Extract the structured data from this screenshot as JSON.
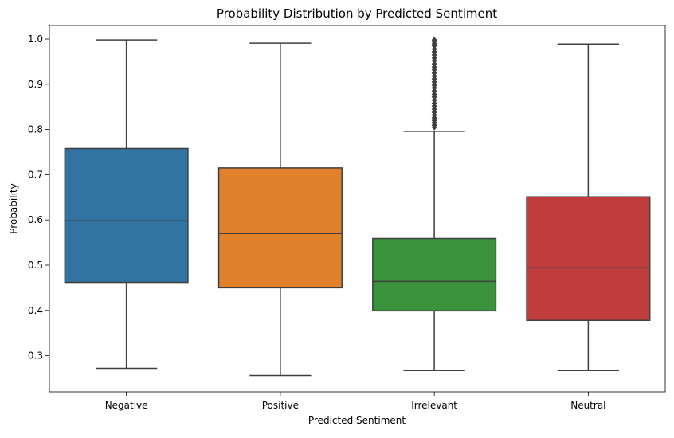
{
  "chart_data": {
    "type": "box",
    "title": "Probability Distribution by Predicted Sentiment",
    "xlabel": "Predicted Sentiment",
    "ylabel": "Probability",
    "ylim": [
      0.22,
      1.03
    ],
    "yticks": [
      "0.3",
      "0.4",
      "0.5",
      "0.6",
      "0.7",
      "0.8",
      "0.9",
      "1.0"
    ],
    "grid": false,
    "categories": [
      "Negative",
      "Positive",
      "Irrelevant",
      "Neutral"
    ],
    "boxes": [
      {
        "category": "Negative",
        "whisker_low": 0.272,
        "q1": 0.462,
        "median": 0.598,
        "q3": 0.758,
        "whisker_high": 0.998,
        "color": "#3274a1",
        "outliers": []
      },
      {
        "category": "Positive",
        "whisker_low": 0.256,
        "q1": 0.45,
        "median": 0.57,
        "q3": 0.715,
        "whisker_high": 0.991,
        "color": "#e1812c",
        "outliers": []
      },
      {
        "category": "Irrelevant",
        "whisker_low": 0.267,
        "q1": 0.399,
        "median": 0.464,
        "q3": 0.559,
        "whisker_high": 0.796,
        "color": "#3a923a",
        "outliers": [
          0.805,
          0.81,
          0.815,
          0.82,
          0.826,
          0.832,
          0.838,
          0.845,
          0.852,
          0.858,
          0.865,
          0.872,
          0.878,
          0.885,
          0.892,
          0.898,
          0.905,
          0.912,
          0.918,
          0.925,
          0.932,
          0.938,
          0.945,
          0.952,
          0.958,
          0.965,
          0.972,
          0.978,
          0.985,
          0.99,
          0.995,
          0.998
        ]
      },
      {
        "category": "Neutral",
        "whisker_low": 0.267,
        "q1": 0.378,
        "median": 0.494,
        "q3": 0.651,
        "whisker_high": 0.989,
        "color": "#c03d3e",
        "outliers": []
      }
    ],
    "line_color": "#3f3f3f"
  }
}
